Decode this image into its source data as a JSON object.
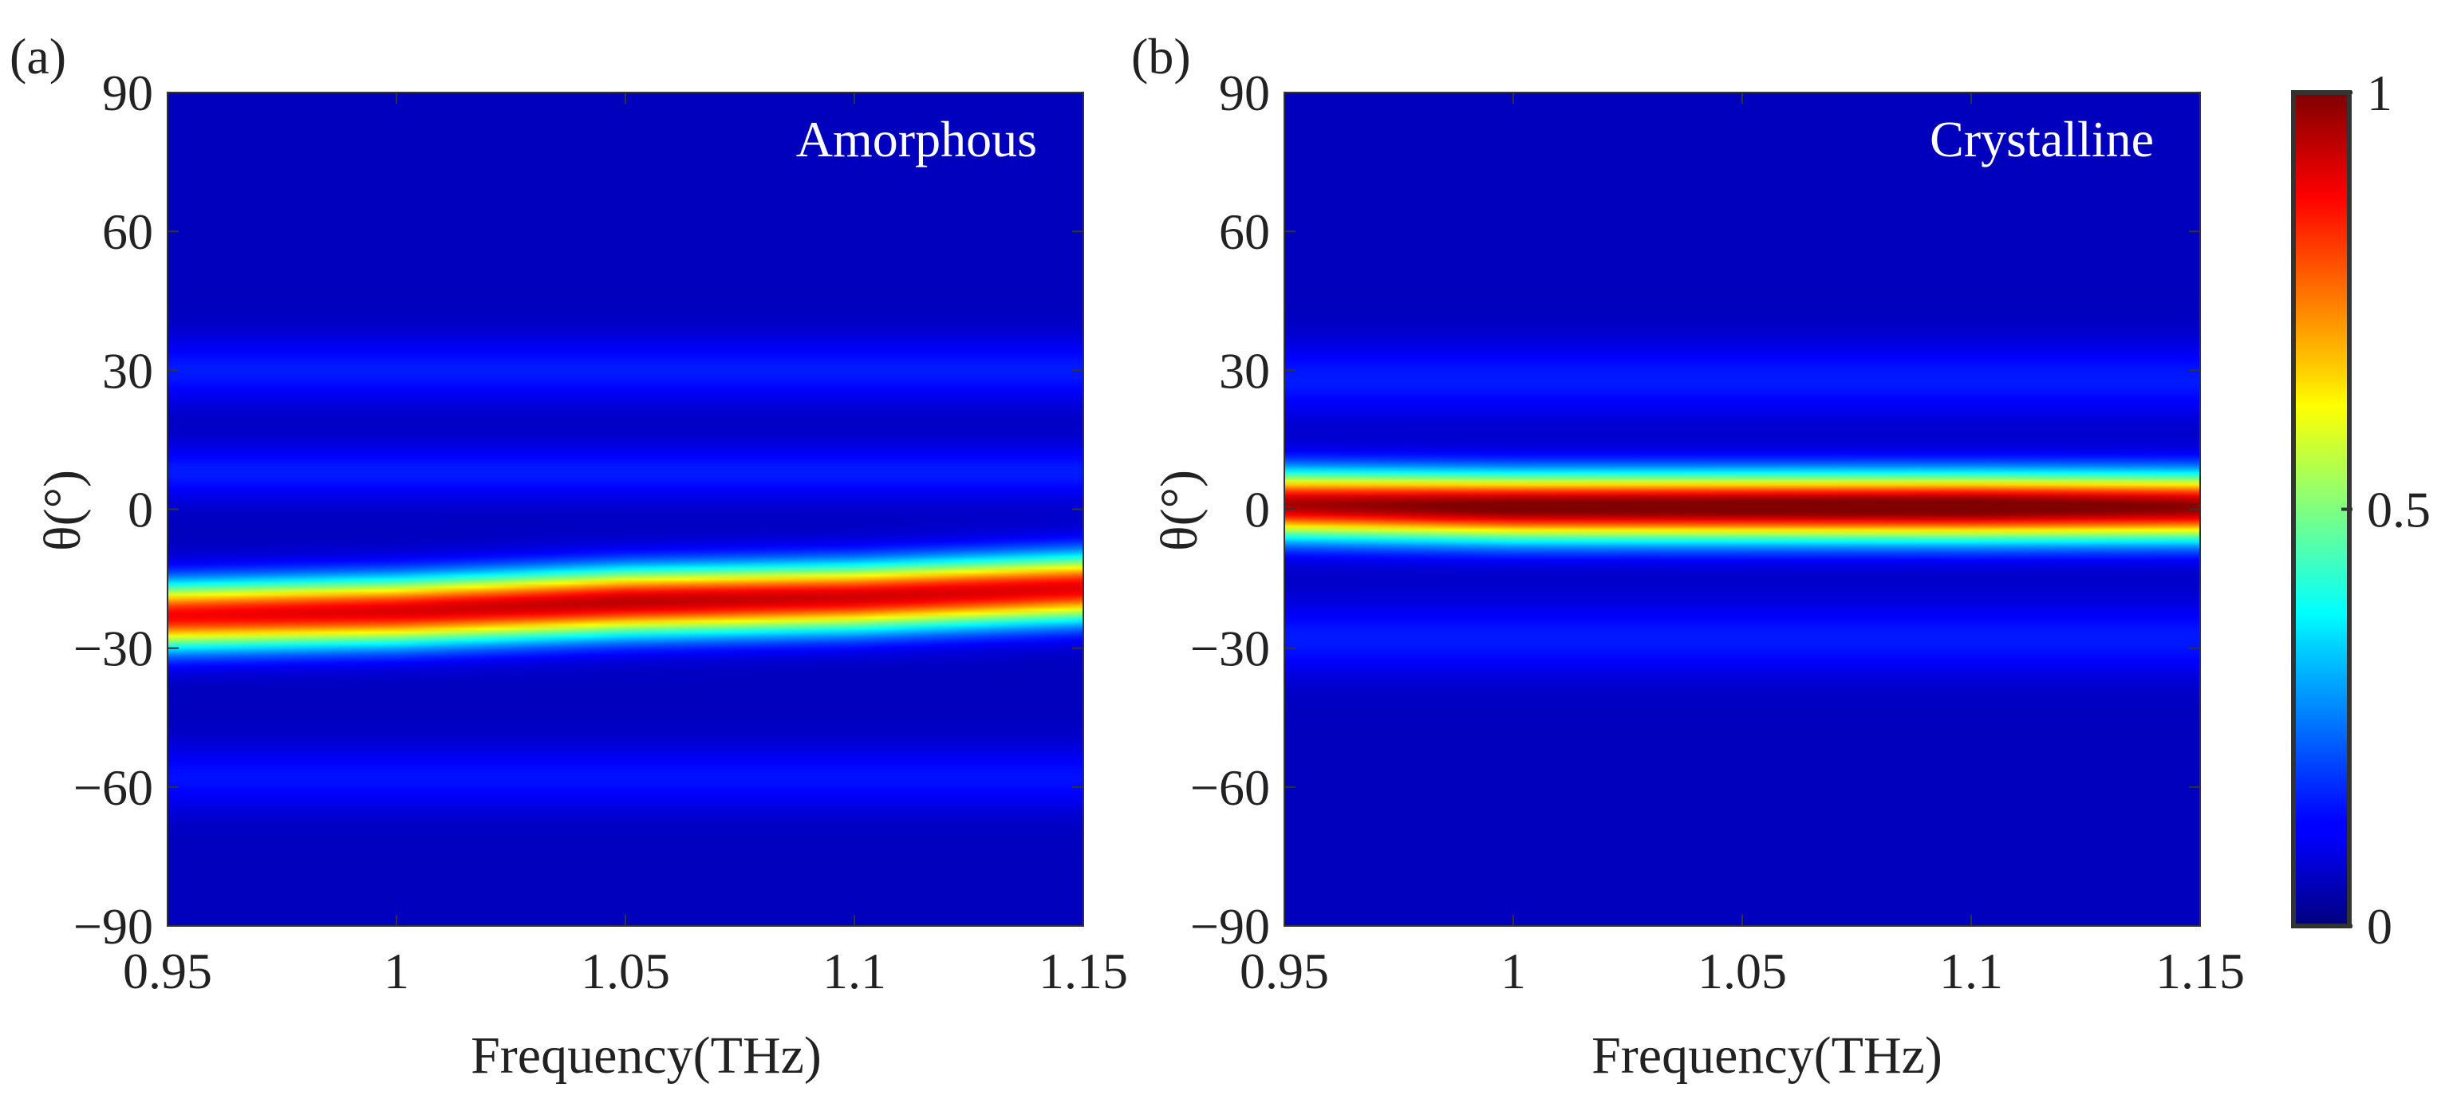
{
  "chart_data": [
    {
      "type": "heatmap",
      "panel_label": "(a)",
      "annotation": "Amorphous",
      "xlabel": "Frequency(THz)",
      "ylabel": "θ(°)",
      "xlim": [
        0.95,
        1.15
      ],
      "ylim": [
        -90,
        90
      ],
      "xticks": [
        0.95,
        1.0,
        1.05,
        1.1,
        1.15
      ],
      "xtick_labels": [
        "0.95",
        "1",
        "1.05",
        "1.1",
        "1.15"
      ],
      "yticks": [
        90,
        60,
        30,
        0,
        -30,
        -60,
        -90
      ],
      "ytick_labels": [
        "90",
        "60",
        "30",
        "0",
        "−30",
        "−60",
        "−90"
      ],
      "beam": {
        "frequency_points": [
          0.95,
          1.0,
          1.05,
          1.1,
          1.15
        ],
        "center_angle_deg": [
          -23,
          -22,
          -20,
          -19,
          -17
        ],
        "peak_intensity": [
          0.82,
          0.85,
          0.88,
          0.86,
          0.84
        ],
        "beam_width_deg": 7,
        "background_level": 0.06,
        "sidelobes": [
          {
            "center_angle_deg": 30,
            "intensity": 0.09,
            "width_deg": 7
          },
          {
            "center_angle_deg": 8,
            "intensity": 0.09,
            "width_deg": 6
          },
          {
            "center_angle_deg": -58,
            "intensity": 0.08,
            "width_deg": 7
          }
        ]
      }
    },
    {
      "type": "heatmap",
      "panel_label": "(b)",
      "annotation": "Crystalline",
      "xlabel": "Frequency(THz)",
      "ylabel": "θ(°)",
      "xlim": [
        0.95,
        1.15
      ],
      "ylim": [
        -90,
        90
      ],
      "xticks": [
        0.95,
        1.0,
        1.05,
        1.1,
        1.15
      ],
      "xtick_labels": [
        "0.95",
        "1",
        "1.05",
        "1.1",
        "1.15"
      ],
      "yticks": [
        90,
        60,
        30,
        0,
        -30,
        -60,
        -90
      ],
      "ytick_labels": [
        "90",
        "60",
        "30",
        "0",
        "−30",
        "−60",
        "−90"
      ],
      "beam": {
        "frequency_points": [
          0.95,
          1.0,
          1.05,
          1.1,
          1.15
        ],
        "center_angle_deg": [
          1,
          0.5,
          0.5,
          0.5,
          0.5
        ],
        "peak_intensity": [
          0.9,
          0.96,
          0.97,
          0.98,
          0.93
        ],
        "beam_width_deg": 7,
        "background_level": 0.06,
        "sidelobes": [
          {
            "center_angle_deg": 28,
            "intensity": 0.09,
            "width_deg": 8
          },
          {
            "center_angle_deg": -28,
            "intensity": 0.09,
            "width_deg": 8
          }
        ]
      }
    }
  ],
  "colorbar": {
    "colormap": "jet",
    "min": 0,
    "max": 1,
    "ticks": [
      0,
      0.5,
      1
    ],
    "tick_labels": [
      "0",
      "0.5",
      "1"
    ]
  }
}
